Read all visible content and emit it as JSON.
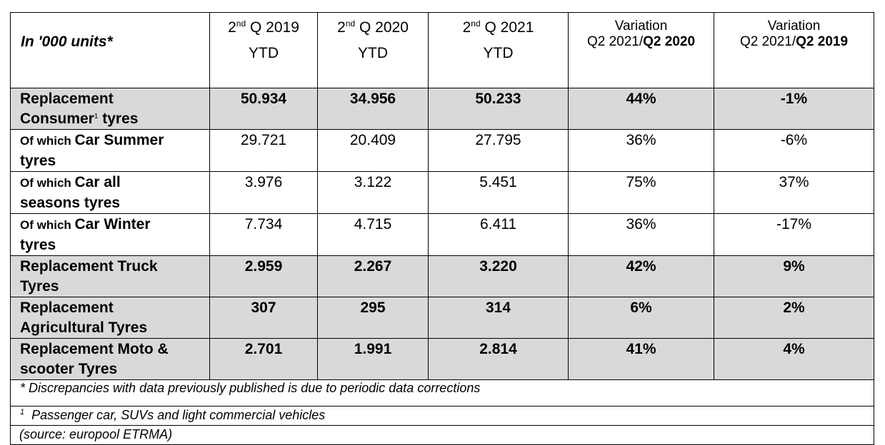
{
  "header": {
    "units": "In '000 units*",
    "cols": [
      {
        "prefix": "2",
        "sup": "nd",
        "suffix": " Q 2019",
        "line2": "YTD"
      },
      {
        "prefix": "2",
        "sup": "nd",
        "suffix": " Q 2020",
        "line2": "YTD"
      },
      {
        "prefix": "2",
        "sup": "nd",
        "suffix": " Q 2021",
        "line2": "YTD"
      }
    ],
    "var1": {
      "line1": "Variation",
      "line2_plain": "Q2 2021/",
      "line2_bold": "Q2 2020"
    },
    "var2": {
      "line1": "Variation",
      "line2_plain": "Q2 2021/",
      "line2_bold": "Q2 2019"
    }
  },
  "rows": [
    {
      "label_line1": "Replacement",
      "label_line2a": "Consumer",
      "label_sup": "1",
      "label_line2b": " tyres",
      "v2019": "50.934",
      "v2020": "34.956",
      "v2021": "50.233",
      "var20": "44%",
      "var19": "-1%"
    },
    {
      "prefix": "Of which ",
      "label_line1": "Car Summer",
      "label_line2": "tyres",
      "v2019": "29.721",
      "v2020": "20.409",
      "v2021": "27.795",
      "var20": "36%",
      "var19": "-6%"
    },
    {
      "prefix": "Of which ",
      "label_line1": "Car all",
      "label_line2": "seasons tyres",
      "v2019": "3.976",
      "v2020": "3.122",
      "v2021": "5.451",
      "var20": "75%",
      "var19": "37%"
    },
    {
      "prefix": "Of which ",
      "label_line1": "Car Winter",
      "label_line2": "tyres",
      "v2019": "7.734",
      "v2020": "4.715",
      "v2021": "6.411",
      "var20": "36%",
      "var19": "-17%"
    },
    {
      "label_line1": "Replacement Truck",
      "label_line2": "Tyres",
      "v2019": "2.959",
      "v2020": "2.267",
      "v2021": "3.220",
      "var20": "42%",
      "var19": "9%"
    },
    {
      "label_line1": "Replacement",
      "label_line2": "Agricultural Tyres",
      "v2019": "307",
      "v2020": "295",
      "v2021": "314",
      "var20": "6%",
      "var19": "2%"
    },
    {
      "label_line1": "Replacement Moto &",
      "label_line2": "scooter Tyres",
      "v2019": "2.701",
      "v2020": "1.991",
      "v2021": "2.814",
      "var20": "41%",
      "var19": "4%"
    }
  ],
  "footnotes": {
    "discrepancy": "* Discrepancies with data previously published is due to periodic data corrections",
    "note1_sup": "1",
    "note1_text": "  Passenger car, SUVs and light commercial vehicles",
    "source": "(source: europool ETRMA)"
  }
}
